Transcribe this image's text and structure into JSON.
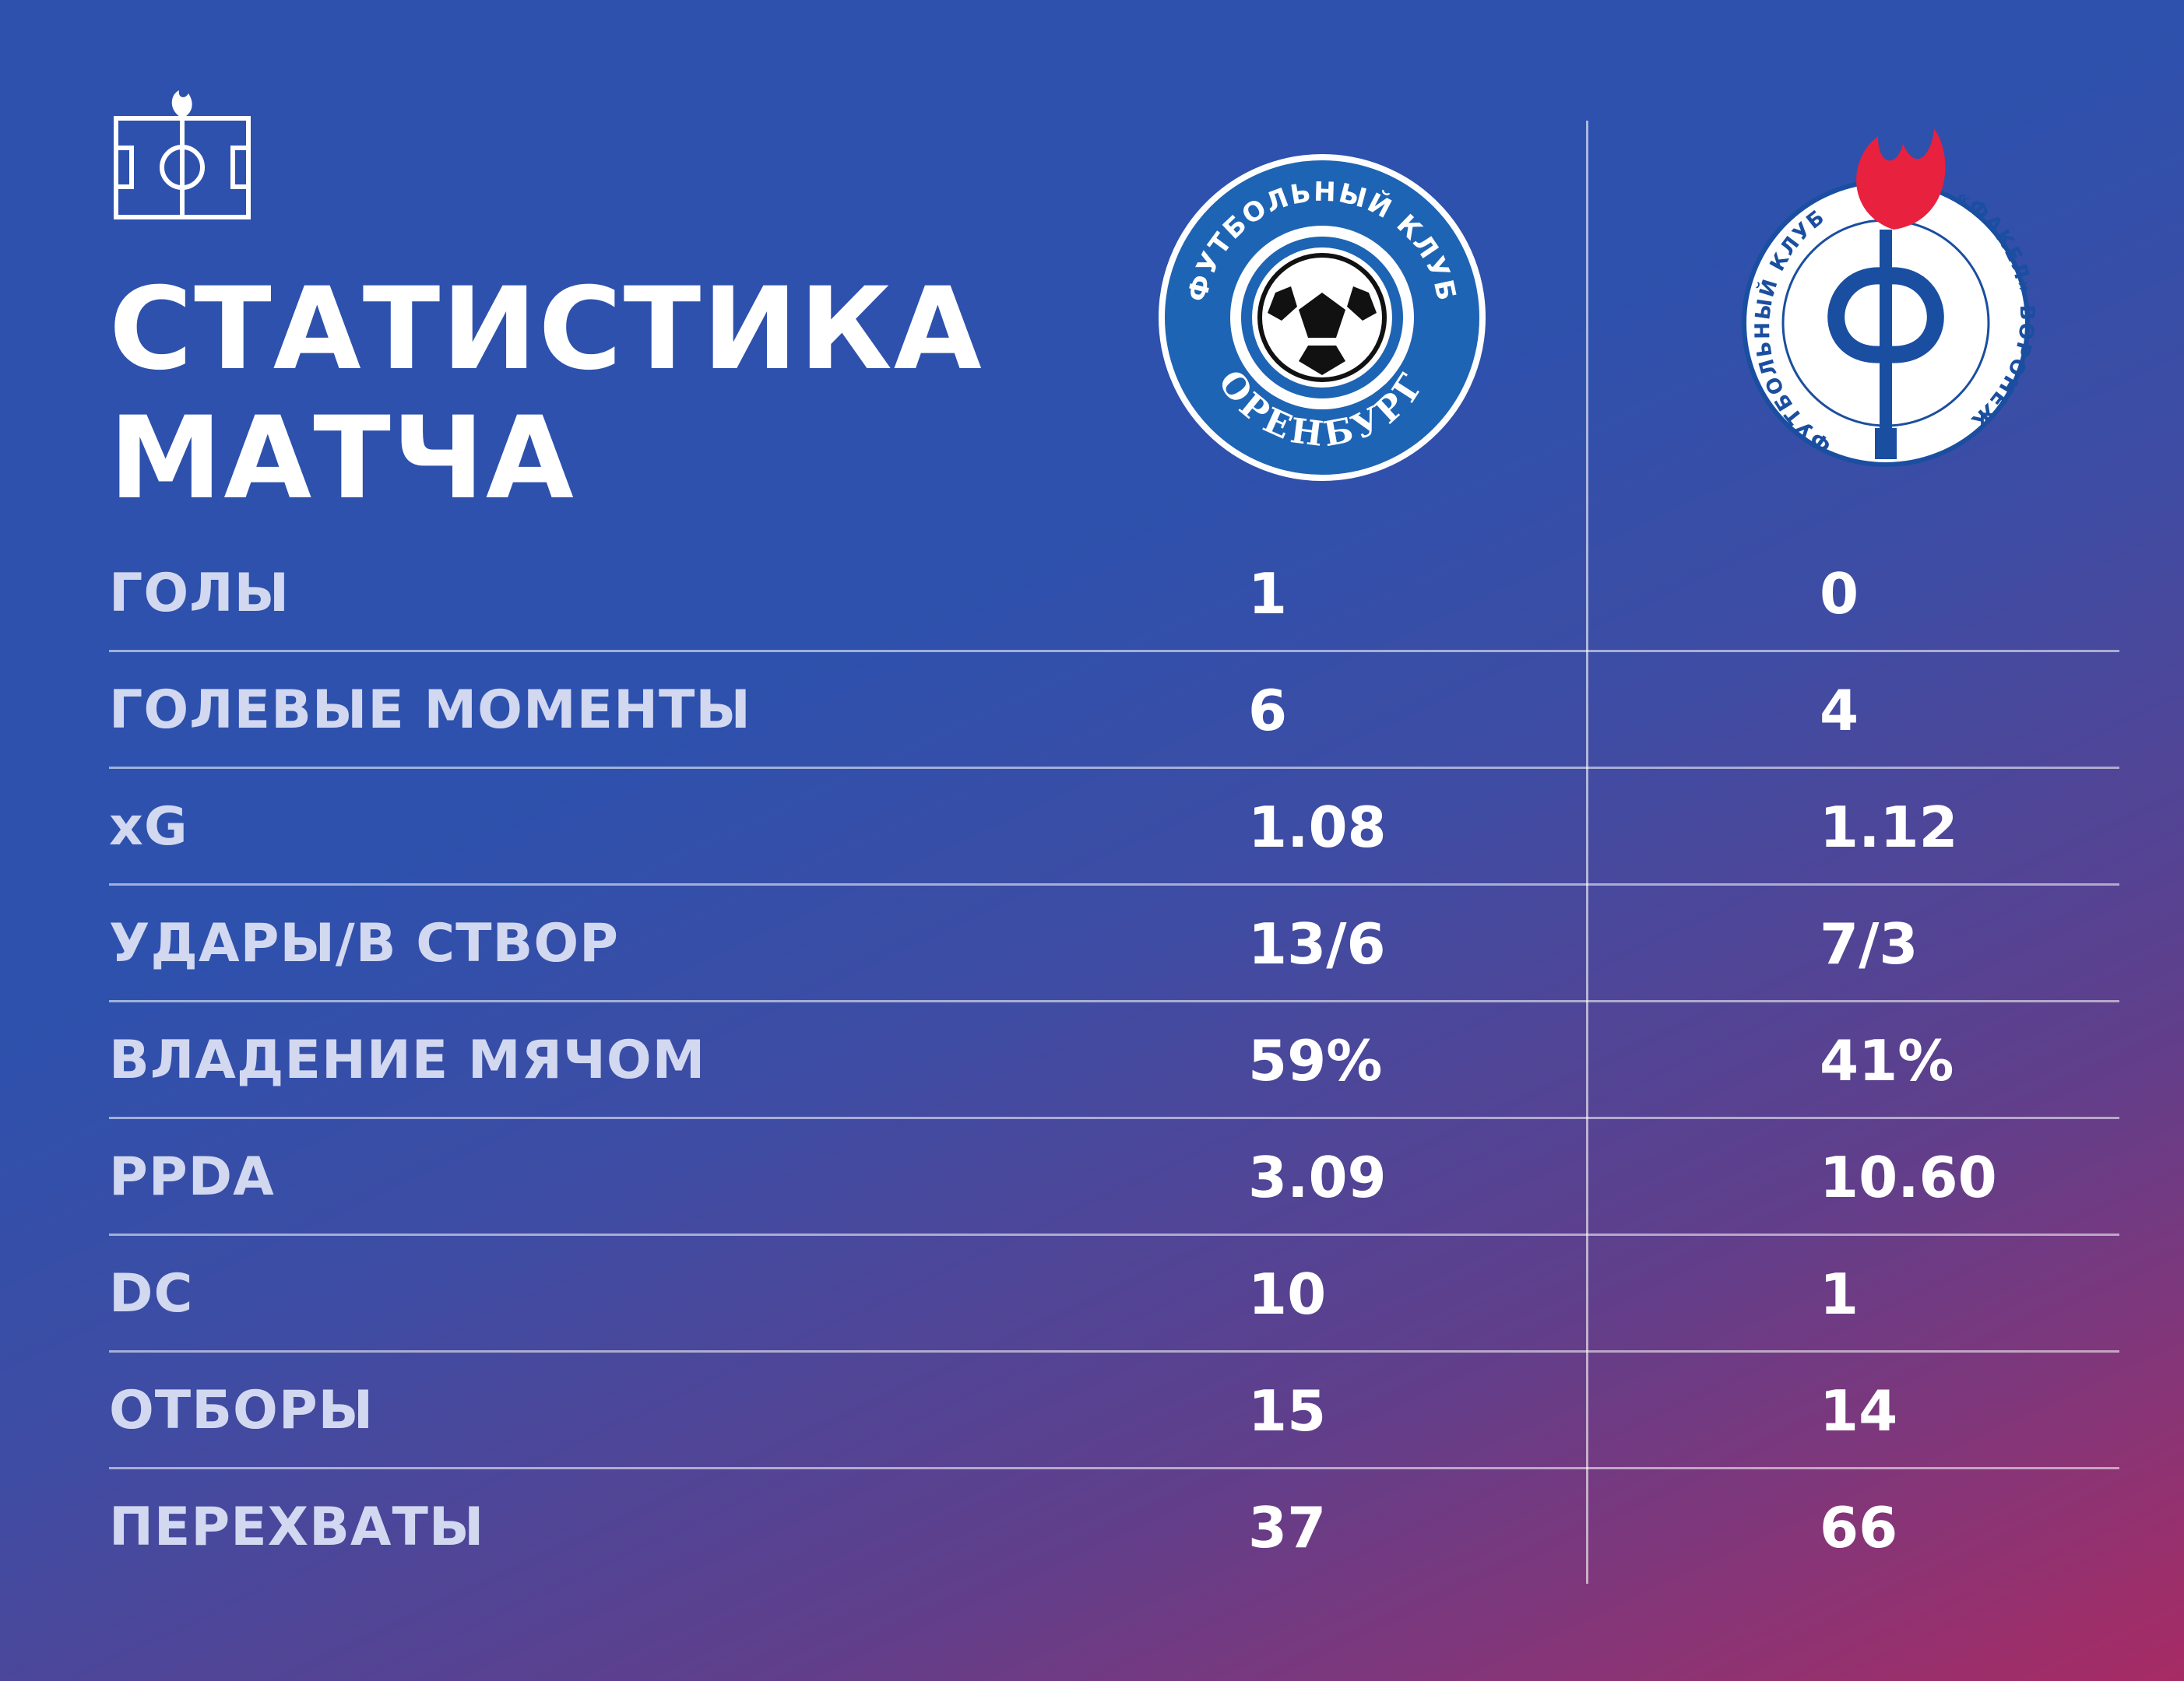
{
  "title": {
    "line1": "СТАТИСТИКА",
    "line2": "МАТЧА"
  },
  "colors": {
    "background_top": "#2d51ad",
    "background_bottom_right": "#a72b64",
    "label": "#d2d8f0",
    "home_logo_blue": "#1e64b4",
    "away_logo_red": "#e8213f",
    "away_logo_blue": "#1a4ea0"
  },
  "teams": {
    "home": {
      "logo_icon": "orenburg-crest-icon",
      "logo_text_top": "ФУТБОЛЬНЫЙ КЛУБ",
      "logo_text_bottom": "ОРЕНБУРГ"
    },
    "away": {
      "logo_icon": "fakel-crest-icon",
      "logo_text_left": "ФУТБОЛЬНЫЙ КЛУБ",
      "logo_text_right": "«ФАКЕЛ» ВОРОНЕЖ"
    }
  },
  "stats": [
    {
      "label": "ГОЛЫ",
      "home": "1",
      "away": "0"
    },
    {
      "label": "ГОЛЕВЫЕ МОМЕНТЫ",
      "home": "6",
      "away": "4"
    },
    {
      "label": "xG",
      "home": "1.08",
      "away": "1.12"
    },
    {
      "label": "УДАРЫ/В СТВОР",
      "home": "13/6",
      "away": "7/3"
    },
    {
      "label": "ВЛАДЕНИЕ МЯЧОМ",
      "home": "59%",
      "away": "41%"
    },
    {
      "label": "PPDA",
      "home": "3.09",
      "away": "10.60"
    },
    {
      "label": "DC",
      "home": "10",
      "away": "1"
    },
    {
      "label": "ОТБОРЫ",
      "home": "15",
      "away": "14"
    },
    {
      "label": "ПЕРЕХВАТЫ",
      "home": "37",
      "away": "66"
    }
  ]
}
